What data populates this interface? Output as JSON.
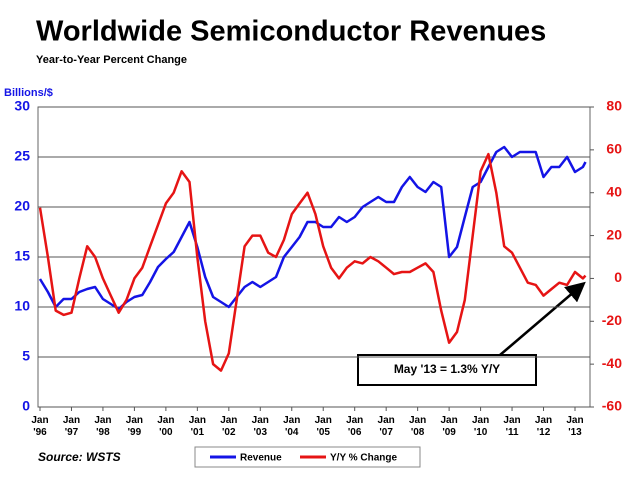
{
  "chart_data": {
    "type": "line",
    "title": "Worldwide Semiconductor Revenues",
    "subtitle": "Year-to-Year Percent Change",
    "y_label": "Billions/$",
    "source": "Source: WSTS",
    "annotation": "May '13 = 1.3% Y/Y",
    "x": [
      "1996-01",
      "1996-04",
      "1996-07",
      "1996-10",
      "1997-01",
      "1997-04",
      "1997-07",
      "1997-10",
      "1998-01",
      "1998-04",
      "1998-07",
      "1998-10",
      "1999-01",
      "1999-04",
      "1999-07",
      "1999-10",
      "2000-01",
      "2000-04",
      "2000-07",
      "2000-10",
      "2001-01",
      "2001-04",
      "2001-07",
      "2001-10",
      "2002-01",
      "2002-04",
      "2002-07",
      "2002-10",
      "2003-01",
      "2003-04",
      "2003-07",
      "2003-10",
      "2004-01",
      "2004-04",
      "2004-07",
      "2004-10",
      "2005-01",
      "2005-04",
      "2005-07",
      "2005-10",
      "2006-01",
      "2006-04",
      "2006-07",
      "2006-10",
      "2007-01",
      "2007-04",
      "2007-07",
      "2007-10",
      "2008-01",
      "2008-04",
      "2008-07",
      "2008-10",
      "2009-01",
      "2009-04",
      "2009-07",
      "2009-10",
      "2010-01",
      "2010-04",
      "2010-07",
      "2010-10",
      "2011-01",
      "2011-04",
      "2011-07",
      "2011-10",
      "2012-01",
      "2012-04",
      "2012-07",
      "2012-10",
      "2013-01",
      "2013-04",
      "2013-05"
    ],
    "series": [
      {
        "name": "Revenue",
        "color": "#1414e6",
        "axis": "y",
        "values": [
          12.8,
          11.5,
          10.0,
          10.8,
          10.8,
          11.5,
          11.8,
          12.0,
          10.8,
          10.3,
          9.8,
          10.5,
          11.0,
          11.2,
          12.5,
          14.0,
          14.8,
          15.5,
          17.0,
          18.5,
          16.0,
          13.0,
          11.0,
          10.5,
          10.0,
          11.0,
          12.0,
          12.5,
          12.0,
          12.5,
          13.0,
          15.0,
          16.0,
          17.0,
          18.5,
          18.5,
          18.0,
          18.0,
          19.0,
          18.5,
          19.0,
          20.0,
          20.5,
          21.0,
          20.5,
          20.5,
          22.0,
          23.0,
          22.0,
          21.5,
          22.5,
          22.0,
          15.0,
          16.0,
          19.0,
          22.0,
          22.5,
          24.0,
          25.5,
          26.0,
          25.0,
          25.5,
          25.5,
          25.5,
          23.0,
          24.0,
          24.0,
          25.0,
          23.5,
          24.0,
          24.5
        ]
      },
      {
        "name": "Y/Y % Change",
        "color": "#e61414",
        "axis": "y2",
        "values": [
          33,
          10,
          -15,
          -17,
          -16,
          0,
          15,
          10,
          0,
          -8,
          -16,
          -10,
          0,
          5,
          15,
          25,
          35,
          40,
          50,
          45,
          10,
          -20,
          -40,
          -43,
          -35,
          -10,
          15,
          20,
          20,
          12,
          10,
          18,
          30,
          35,
          40,
          30,
          15,
          5,
          0,
          5,
          8,
          7,
          10,
          8,
          5,
          2,
          3,
          3,
          5,
          7,
          3,
          -15,
          -30,
          -25,
          -10,
          20,
          50,
          58,
          40,
          15,
          12,
          5,
          -2,
          -3,
          -8,
          -5,
          -2,
          -3,
          3,
          0,
          1.3
        ]
      }
    ],
    "ylim": [
      0,
      30
    ],
    "yticks": [
      0,
      5,
      10,
      15,
      20,
      25,
      30
    ],
    "y2lim": [
      -60,
      80
    ],
    "y2ticks": [
      -60,
      -40,
      -20,
      0,
      20,
      40,
      60,
      80
    ],
    "xticks": [
      {
        "value": "1996-01",
        "label": "Jan\n'96"
      },
      {
        "value": "1997-01",
        "label": "Jan\n'97"
      },
      {
        "value": "1998-01",
        "label": "Jan\n'98"
      },
      {
        "value": "1999-01",
        "label": "Jan\n'99"
      },
      {
        "value": "2000-01",
        "label": "Jan\n'00"
      },
      {
        "value": "2001-01",
        "label": "Jan\n'01"
      },
      {
        "value": "2002-01",
        "label": "Jan\n'02"
      },
      {
        "value": "2003-01",
        "label": "Jan\n'03"
      },
      {
        "value": "2004-01",
        "label": "Jan\n'04"
      },
      {
        "value": "2005-01",
        "label": "Jan\n'05"
      },
      {
        "value": "2006-01",
        "label": "Jan\n'06"
      },
      {
        "value": "2007-01",
        "label": "Jan\n'07"
      },
      {
        "value": "2008-01",
        "label": "Jan\n'08"
      },
      {
        "value": "2009-01",
        "label": "Jan\n'09"
      },
      {
        "value": "2010-01",
        "label": "Jan\n'10"
      },
      {
        "value": "2011-01",
        "label": "Jan\n'11"
      },
      {
        "value": "2012-01",
        "label": "Jan\n'12"
      },
      {
        "value": "2013-01",
        "label": "Jan\n'13"
      }
    ],
    "grid": true
  }
}
